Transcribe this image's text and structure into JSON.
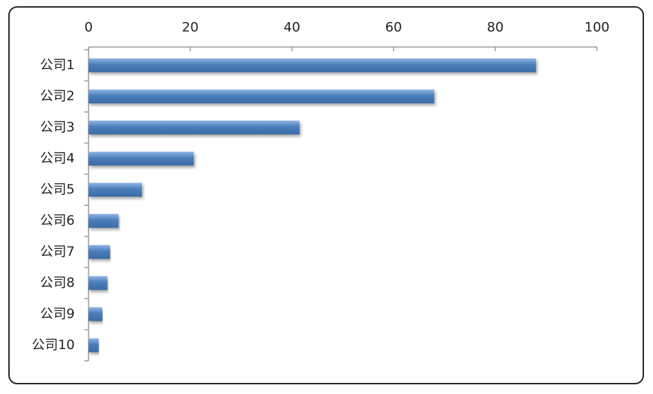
{
  "chart_data": {
    "type": "bar",
    "orientation": "horizontal",
    "categories": [
      "公司1",
      "公司2",
      "公司3",
      "公司4",
      "公司5",
      "公司6",
      "公司7",
      "公司8",
      "公司9",
      "公司10"
    ],
    "values": [
      88,
      68,
      41.5,
      20.7,
      10.5,
      5.9,
      4.2,
      3.7,
      2.7,
      2.0
    ],
    "color": "#4a7ebb",
    "xlim": [
      0,
      100
    ],
    "xticks": [
      0,
      20,
      40,
      60,
      80,
      100
    ]
  }
}
